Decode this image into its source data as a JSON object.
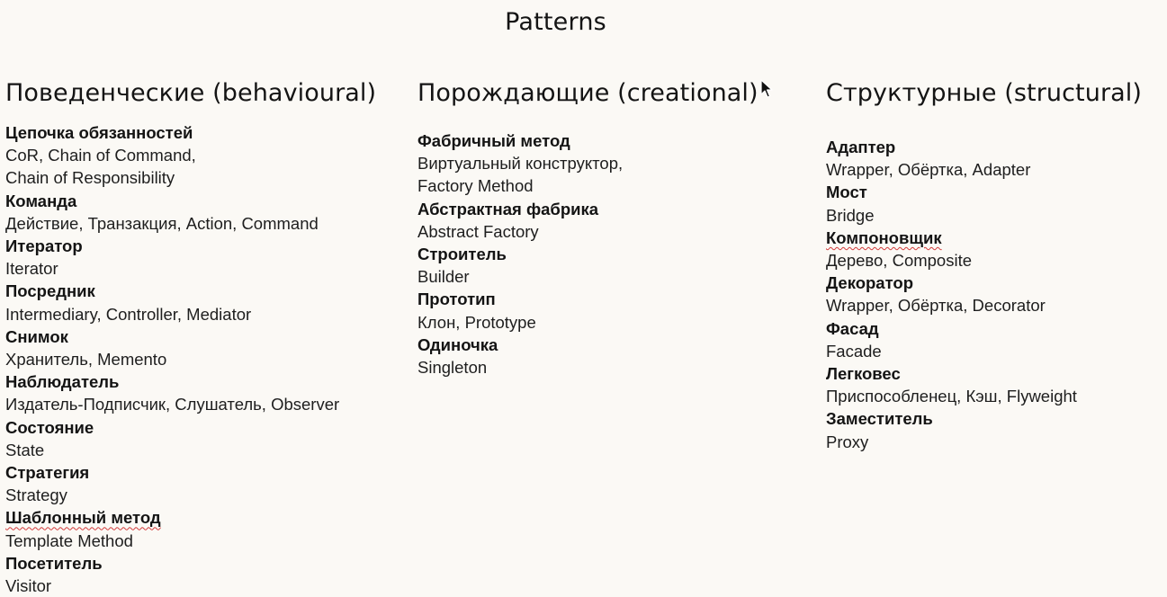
{
  "page": {
    "title": "Patterns"
  },
  "columns": [
    {
      "heading": "Поведенческие (behavioural)",
      "patterns": [
        {
          "name": "Цепочка обязанностей",
          "aliases": "CoR, Chain of Command,\nChain of Responsibility"
        },
        {
          "name": "Команда",
          "aliases": "Действие, Транзакция, Action, Command"
        },
        {
          "name": "Итератор",
          "aliases": "Iterator"
        },
        {
          "name": "Посредник",
          "aliases": "Intermediary, Controller, Mediator"
        },
        {
          "name": "Снимок",
          "aliases": "Хранитель, Memento"
        },
        {
          "name": "Наблюдатель",
          "aliases": "Издатель-Подписчик, Слушатель, Observer"
        },
        {
          "name": "Состояние",
          "aliases": "State"
        },
        {
          "name": "Стратегия",
          "aliases": "Strategy"
        },
        {
          "name": "Шаблонный метод",
          "aliases": "Template Method",
          "spellcheck": true
        },
        {
          "name": "Посетитель",
          "aliases": "Visitor"
        }
      ]
    },
    {
      "heading": "Порождающие (creational)",
      "patterns": [
        {
          "name": "Фабричный метод",
          "aliases": "Виртуальный конструктор,\nFactory Method"
        },
        {
          "name": "Абстрактная фабрика",
          "aliases": "Abstract Factory"
        },
        {
          "name": "Строитель",
          "aliases": "Builder"
        },
        {
          "name": "Прототип",
          "aliases": "Клон, Prototype"
        },
        {
          "name": "Одиночка",
          "aliases": "Singleton"
        }
      ]
    },
    {
      "heading": "Структурные (structural)",
      "patterns": [
        {
          "name": "Адаптер",
          "aliases": "Wrapper, Обёртка, Adapter"
        },
        {
          "name": "Мост",
          "aliases": "Bridge"
        },
        {
          "name": "Компоновщик",
          "aliases": "Дерево, Composite",
          "spellcheck": true
        },
        {
          "name": "Декоратор",
          "aliases": "Wrapper, Обёртка, Decorator"
        },
        {
          "name": "Фасад",
          "aliases": "Facade"
        },
        {
          "name": "Легковес",
          "aliases": "Приспособленец, Кэш, Flyweight"
        },
        {
          "name": "Заместитель",
          "aliases": "Proxy"
        }
      ]
    }
  ],
  "cursor": {
    "icon": "mouse-pointer-icon"
  }
}
